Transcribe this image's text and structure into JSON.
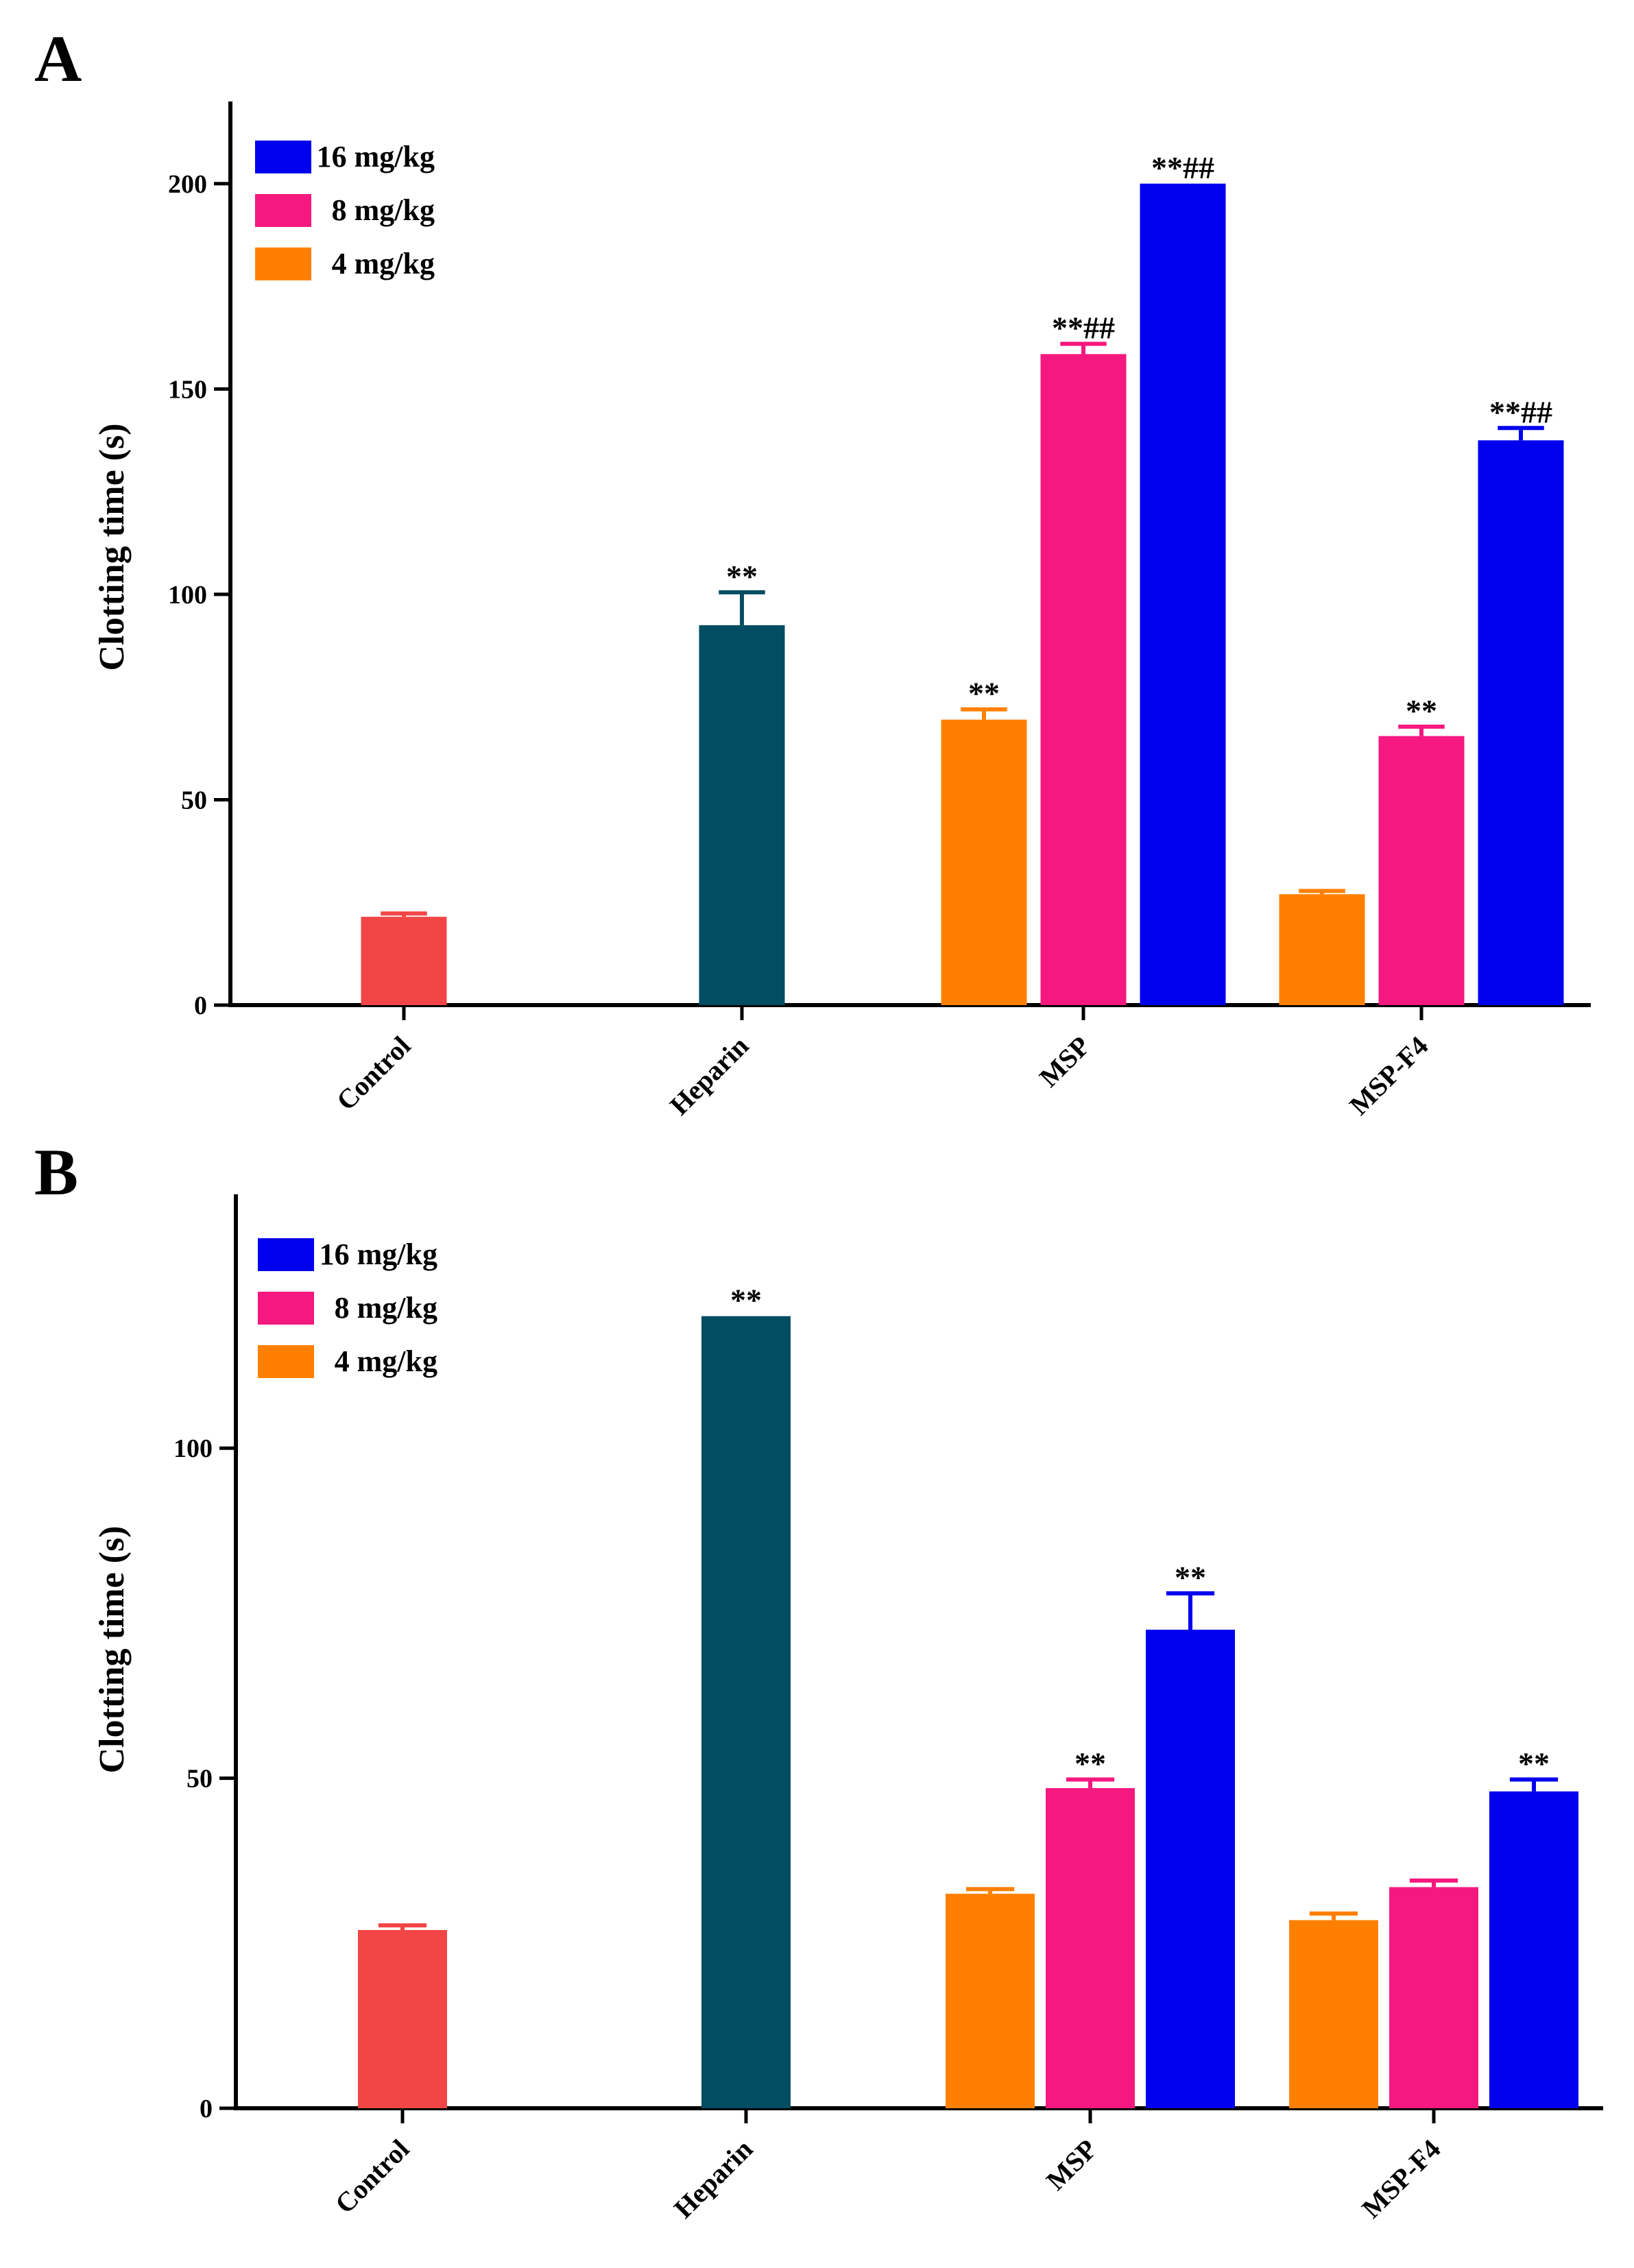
{
  "colors": {
    "Control": "#f24545",
    "Heparin": "#024d61",
    "4 mg/kg": "#ff8000",
    "8 mg/kg": "#f5187f",
    "16 mg/kg": "#0000ee",
    "axis": "#000000"
  },
  "chart_data": [
    {
      "panel": "A",
      "type": "bar",
      "ylabel": "Clotting time (s)",
      "xlabel": "",
      "ylim": [
        0,
        220
      ],
      "yticks": [
        0,
        50,
        100,
        150,
        200
      ],
      "categories": [
        "Control",
        "Heparin",
        "MSP",
        "MSP-F4"
      ],
      "legend": [
        "16 mg/kg",
        "8 mg/kg",
        "4 mg/kg"
      ],
      "bars": [
        {
          "category": "Control",
          "series": "Control",
          "value": 21.5,
          "error": 0.8,
          "annotation": ""
        },
        {
          "category": "Heparin",
          "series": "Heparin",
          "value": 92.5,
          "error": 8,
          "annotation": "**"
        },
        {
          "category": "MSP",
          "series": "4 mg/kg",
          "value": 69.5,
          "error": 2.5,
          "annotation": "**"
        },
        {
          "category": "MSP",
          "series": "8 mg/kg",
          "value": 158.5,
          "error": 2.5,
          "annotation": "**##"
        },
        {
          "category": "MSP",
          "series": "16 mg/kg",
          "value": 200,
          "error": 0,
          "annotation": "**##"
        },
        {
          "category": "MSP-F4",
          "series": "4 mg/kg",
          "value": 27,
          "error": 0.8,
          "annotation": ""
        },
        {
          "category": "MSP-F4",
          "series": "8 mg/kg",
          "value": 65.5,
          "error": 2.3,
          "annotation": "**"
        },
        {
          "category": "MSP-F4",
          "series": "16 mg/kg",
          "value": 137.5,
          "error": 3,
          "annotation": "**##"
        }
      ]
    },
    {
      "panel": "B",
      "type": "bar",
      "ylabel": "Clotting time (s)",
      "xlabel": "",
      "ylim": [
        0,
        137
      ],
      "yticks": [
        0,
        50,
        100
      ],
      "categories": [
        "Control",
        "Heparin",
        "MSP",
        "MSP-F4"
      ],
      "legend": [
        "16 mg/kg",
        "8 mg/kg",
        "4 mg/kg"
      ],
      "bars": [
        {
          "category": "Control",
          "series": "Control",
          "value": 27,
          "error": 0.7,
          "annotation": ""
        },
        {
          "category": "Heparin",
          "series": "Heparin",
          "value": 120,
          "error": 0,
          "annotation": "**"
        },
        {
          "category": "MSP",
          "series": "4 mg/kg",
          "value": 32.5,
          "error": 0.7,
          "annotation": ""
        },
        {
          "category": "MSP",
          "series": "8 mg/kg",
          "value": 48.5,
          "error": 1.3,
          "annotation": "**"
        },
        {
          "category": "MSP",
          "series": "16 mg/kg",
          "value": 72.5,
          "error": 5.5,
          "annotation": "**"
        },
        {
          "category": "MSP-F4",
          "series": "4 mg/kg",
          "value": 28.5,
          "error": 1,
          "annotation": ""
        },
        {
          "category": "MSP-F4",
          "series": "8 mg/kg",
          "value": 33.5,
          "error": 1,
          "annotation": ""
        },
        {
          "category": "MSP-F4",
          "series": "16 mg/kg",
          "value": 48,
          "error": 1.8,
          "annotation": "**"
        }
      ]
    }
  ]
}
